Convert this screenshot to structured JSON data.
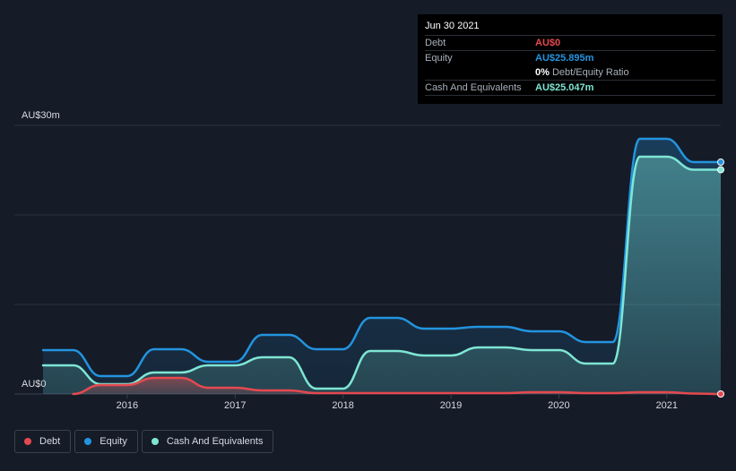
{
  "colors": {
    "background": "#151b27",
    "debt": "#e5494f",
    "equity": "#2394df",
    "cash": "#7ee6d4",
    "grid": "#2c3340"
  },
  "tooltip": {
    "date": "Jun 30 2021",
    "rows": [
      {
        "label": "Debt",
        "value": "AU$0",
        "color": "#e5494f"
      },
      {
        "label": "Equity",
        "value": "AU$25.895m",
        "color": "#2394df"
      },
      {
        "label": "",
        "value": "0%",
        "suffix": "Debt/Equity Ratio",
        "color": "#ffffff"
      },
      {
        "label": "Cash And Equivalents",
        "value": "AU$25.047m",
        "color": "#7ee6d4"
      }
    ]
  },
  "legend": [
    {
      "label": "Debt",
      "color": "#e5494f"
    },
    {
      "label": "Equity",
      "color": "#2394df"
    },
    {
      "label": "Cash And Equivalents",
      "color": "#7ee6d4"
    }
  ],
  "chart_data": {
    "type": "area",
    "y_top_label": "AU$30m",
    "y_bottom_label": "AU$0",
    "ylim": [
      0,
      30
    ],
    "xlim": [
      2015.22,
      2021.5
    ],
    "x_ticks": [
      2016,
      2017,
      2018,
      2019,
      2020,
      2021
    ],
    "x_tick_labels": [
      "2016",
      "2017",
      "2018",
      "2019",
      "2020",
      "2021"
    ],
    "grid": true,
    "legend_position": "bottom-left",
    "series": [
      {
        "name": "Debt",
        "points": [
          [
            2015.5,
            0
          ],
          [
            2015.75,
            1.0
          ],
          [
            2016.0,
            1.0
          ],
          [
            2016.25,
            1.8
          ],
          [
            2016.5,
            1.8
          ],
          [
            2016.75,
            0.7
          ],
          [
            2017.0,
            0.7
          ],
          [
            2017.25,
            0.4
          ],
          [
            2017.5,
            0.4
          ],
          [
            2017.75,
            0.1
          ],
          [
            2018.0,
            0.1
          ],
          [
            2019.5,
            0.1
          ],
          [
            2019.75,
            0.2
          ],
          [
            2020.0,
            0.2
          ],
          [
            2020.25,
            0.1
          ],
          [
            2020.5,
            0.1
          ],
          [
            2020.75,
            0.2
          ],
          [
            2021.0,
            0.2
          ],
          [
            2021.25,
            0.05
          ],
          [
            2021.5,
            0
          ]
        ]
      },
      {
        "name": "Equity",
        "points": [
          [
            2015.22,
            4.9
          ],
          [
            2015.5,
            4.9
          ],
          [
            2015.75,
            2.0
          ],
          [
            2016.0,
            2.0
          ],
          [
            2016.25,
            5.0
          ],
          [
            2016.5,
            5.0
          ],
          [
            2016.75,
            3.6
          ],
          [
            2017.0,
            3.6
          ],
          [
            2017.25,
            6.6
          ],
          [
            2017.5,
            6.6
          ],
          [
            2017.75,
            5.0
          ],
          [
            2018.0,
            5.0
          ],
          [
            2018.25,
            8.5
          ],
          [
            2018.5,
            8.5
          ],
          [
            2018.75,
            7.3
          ],
          [
            2019.0,
            7.3
          ],
          [
            2019.25,
            7.5
          ],
          [
            2019.5,
            7.5
          ],
          [
            2019.75,
            7.0
          ],
          [
            2020.0,
            7.0
          ],
          [
            2020.25,
            5.8
          ],
          [
            2020.5,
            5.8
          ],
          [
            2020.75,
            28.5
          ],
          [
            2021.0,
            28.5
          ],
          [
            2021.25,
            25.895
          ],
          [
            2021.5,
            25.895
          ]
        ]
      },
      {
        "name": "Cash And Equivalents",
        "points": [
          [
            2015.22,
            3.2
          ],
          [
            2015.5,
            3.2
          ],
          [
            2015.75,
            1.1
          ],
          [
            2016.0,
            1.1
          ],
          [
            2016.25,
            2.4
          ],
          [
            2016.5,
            2.4
          ],
          [
            2016.75,
            3.2
          ],
          [
            2017.0,
            3.2
          ],
          [
            2017.25,
            4.1
          ],
          [
            2017.5,
            4.1
          ],
          [
            2017.75,
            0.6
          ],
          [
            2018.0,
            0.6
          ],
          [
            2018.25,
            4.8
          ],
          [
            2018.5,
            4.8
          ],
          [
            2018.75,
            4.3
          ],
          [
            2019.0,
            4.3
          ],
          [
            2019.25,
            5.2
          ],
          [
            2019.5,
            5.2
          ],
          [
            2019.75,
            4.9
          ],
          [
            2020.0,
            4.9
          ],
          [
            2020.25,
            3.4
          ],
          [
            2020.5,
            3.4
          ],
          [
            2020.75,
            26.5
          ],
          [
            2021.0,
            26.5
          ],
          [
            2021.25,
            25.047
          ],
          [
            2021.5,
            25.047
          ]
        ]
      }
    ]
  }
}
